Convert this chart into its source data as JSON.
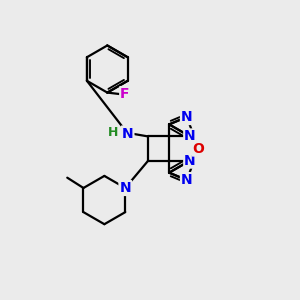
{
  "bg_color": "#ebebeb",
  "bond_color": "#000000",
  "bond_width": 1.6,
  "atom_colors": {
    "N": "#0000ee",
    "O": "#dd0000",
    "F": "#cc00cc",
    "H": "#228B22",
    "C": "#000000"
  },
  "font_size": 10,
  "fig_size": [
    3.0,
    3.0
  ],
  "dpi": 100
}
